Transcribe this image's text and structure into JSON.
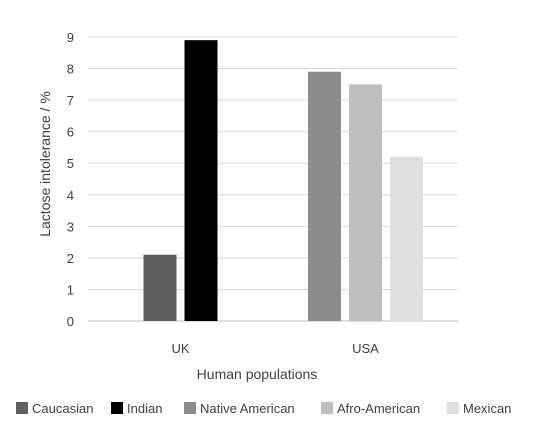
{
  "chart_data": {
    "type": "bar",
    "categories": [
      "UK",
      "USA"
    ],
    "series": [
      {
        "name": "Caucasian",
        "color": "#5f5f5f",
        "values": [
          2.1,
          null
        ]
      },
      {
        "name": "Indian",
        "color": "#000000",
        "values": [
          8.9,
          null
        ]
      },
      {
        "name": "Native American",
        "color": "#8c8c8c",
        "values": [
          null,
          7.9
        ]
      },
      {
        "name": "Afro-American",
        "color": "#bfbfbf",
        "values": [
          null,
          7.5
        ]
      },
      {
        "name": "Mexican",
        "color": "#e0e0e0",
        "values": [
          null,
          5.2
        ]
      }
    ],
    "title": "",
    "xlabel": "Human populations",
    "ylabel": "Lactose intolerance / %",
    "ylim": [
      0,
      9
    ],
    "yticks": [
      "0",
      "1",
      "2",
      "3",
      "4",
      "5",
      "6",
      "7",
      "8",
      "9"
    ],
    "grid": true,
    "legend_position": "bottom"
  }
}
